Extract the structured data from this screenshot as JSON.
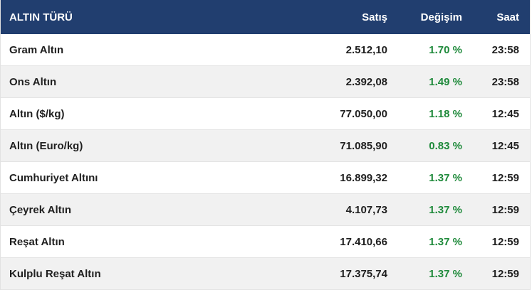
{
  "table": {
    "headers": {
      "name": "ALTIN TÜRÜ",
      "price": "Satış",
      "change": "Değişim",
      "time": "Saat"
    },
    "rows": [
      {
        "name": "Gram Altın",
        "price": "2.512,10",
        "change": "1.70 %",
        "time": "23:58"
      },
      {
        "name": "Ons Altın",
        "price": "2.392,08",
        "change": "1.49 %",
        "time": "23:58"
      },
      {
        "name": "Altın ($/kg)",
        "price": "77.050,00",
        "change": "1.18 %",
        "time": "12:45"
      },
      {
        "name": "Altın (Euro/kg)",
        "price": "71.085,90",
        "change": "0.83 %",
        "time": "12:45"
      },
      {
        "name": "Cumhuriyet Altını",
        "price": "16.899,32",
        "change": "1.37 %",
        "time": "12:59"
      },
      {
        "name": "Çeyrek Altın",
        "price": "4.107,73",
        "change": "1.37 %",
        "time": "12:59"
      },
      {
        "name": "Reşat Altın",
        "price": "17.410,66",
        "change": "1.37 %",
        "time": "12:59"
      },
      {
        "name": "Kulplu Reşat Altın",
        "price": "17.375,74",
        "change": "1.37 %",
        "time": "12:59"
      }
    ]
  },
  "colors": {
    "header_bg": "#213e6f",
    "header_text": "#ffffff",
    "row_alt_bg": "#f1f1f1",
    "positive_change": "#1f8a3b"
  }
}
